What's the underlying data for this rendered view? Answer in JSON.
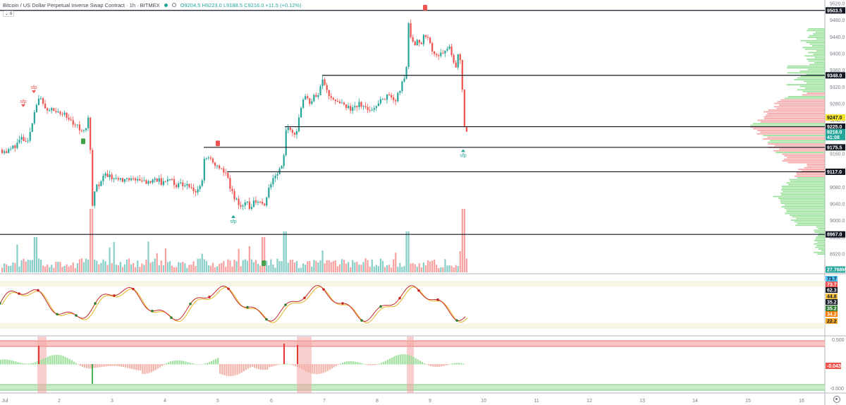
{
  "header": {
    "symbol": "Bitcoin / US Dollar Perpetual Inverse Swap Contract · 1h · BITMEX",
    "ohlc": "O9204.5  H9223.0  L9188.5  C9216.0  +11.5 (+0.12%)",
    "indicators_badge": "6"
  },
  "price_axis": {
    "ticks": [
      "9520.0",
      "9480.0",
      "9440.0",
      "9400.0",
      "9360.0",
      "9320.0",
      "9280.0",
      "9240.0",
      "9200.0",
      "9160.0",
      "9120.0",
      "9080.0",
      "9040.0",
      "9000.0",
      "8960.0",
      "8920.0"
    ],
    "badges": [
      {
        "text": "9503.5",
        "bg": "#131722",
        "fg": "#ffffff"
      },
      {
        "text": "9348.0",
        "bg": "#131722",
        "fg": "#ffffff"
      },
      {
        "text": "9247.0",
        "bg": "#f6e12b",
        "fg": "#131722"
      },
      {
        "text": "9225.0",
        "bg": "#131722",
        "fg": "#ffffff"
      },
      {
        "text": "9216.0",
        "bg": "#26a69a",
        "fg": "#ffffff"
      },
      {
        "text": "41:08",
        "bg": "#26a69a",
        "fg": "#ffffff"
      },
      {
        "text": "9175.5",
        "bg": "#131722",
        "fg": "#ffffff"
      },
      {
        "text": "9117.0",
        "bg": "#131722",
        "fg": "#ffffff"
      },
      {
        "text": "8967.0",
        "bg": "#131722",
        "fg": "#ffffff"
      },
      {
        "text": "27.768M",
        "bg": "#26a69a",
        "fg": "#ffffff"
      }
    ]
  },
  "levels": [
    9503.5,
    9348.0,
    9225.0,
    9175.5,
    9117.0,
    8967.0
  ],
  "oscillator_axis": {
    "badges": [
      {
        "text": "73.7",
        "bg": "#4fc3f7",
        "fg": "#131722"
      },
      {
        "text": "73.7",
        "bg": "#ef5350",
        "fg": "#ffffff"
      },
      {
        "text": "62.3",
        "bg": "#131722",
        "fg": "#ffffff"
      },
      {
        "text": "44.8",
        "bg": "#f6c343",
        "fg": "#131722"
      },
      {
        "text": "35.2",
        "bg": "#131722",
        "fg": "#ffffff"
      },
      {
        "text": "35.2",
        "bg": "#2e7d32",
        "fg": "#ffffff"
      },
      {
        "text": "34.2",
        "bg": "#f57c00",
        "fg": "#ffffff"
      },
      {
        "text": "22.2",
        "bg": "#f9a825",
        "fg": "#131722"
      }
    ]
  },
  "macd_axis": {
    "ticks": [
      "0.500",
      "-0.500"
    ],
    "badge": {
      "text": "-0.043",
      "bg": "#ef5350",
      "fg": "#ffffff"
    }
  },
  "time_axis": {
    "labels": [
      "Jul",
      "2",
      "3",
      "4",
      "5",
      "6",
      "7",
      "8",
      "9",
      "10",
      "11",
      "12",
      "13",
      "14",
      "15",
      "16"
    ]
  },
  "annotations": {
    "sfp": "sfp"
  },
  "colors": {
    "up": "#26a69a",
    "down": "#ef5350",
    "vp_up": "#7ed87e",
    "vp_down": "#f48c8c"
  },
  "chart_data": {
    "type": "candlestick",
    "symbol": "BTCUSD",
    "timeframe": "1h",
    "ylim": [
      8880,
      9540
    ],
    "close_path": [
      [
        0,
        9170
      ],
      [
        10,
        9165
      ],
      [
        20,
        9180
      ],
      [
        30,
        9195
      ],
      [
        40,
        9190
      ],
      [
        45,
        9240
      ],
      [
        50,
        9280
      ],
      [
        55,
        9295
      ],
      [
        60,
        9280
      ],
      [
        65,
        9260
      ],
      [
        70,
        9265
      ],
      [
        80,
        9262
      ],
      [
        90,
        9255
      ],
      [
        100,
        9235
      ],
      [
        110,
        9225
      ],
      [
        120,
        9215
      ],
      [
        125,
        9262
      ],
      [
        130,
        9040
      ],
      [
        135,
        9080
      ],
      [
        140,
        9090
      ],
      [
        150,
        9110
      ],
      [
        160,
        9105
      ],
      [
        170,
        9100
      ],
      [
        180,
        9095
      ],
      [
        190,
        9100
      ],
      [
        200,
        9095
      ],
      [
        210,
        9090
      ],
      [
        220,
        9100
      ],
      [
        230,
        9090
      ],
      [
        240,
        9095
      ],
      [
        250,
        9085
      ],
      [
        260,
        9090
      ],
      [
        270,
        9080
      ],
      [
        280,
        9070
      ],
      [
        285,
        9090
      ],
      [
        290,
        9160
      ],
      [
        295,
        9145
      ],
      [
        300,
        9140
      ],
      [
        305,
        9135
      ],
      [
        310,
        9125
      ],
      [
        320,
        9110
      ],
      [
        325,
        9080
      ],
      [
        330,
        9060
      ],
      [
        335,
        9050
      ],
      [
        340,
        9030
      ],
      [
        345,
        9045
      ],
      [
        350,
        9040
      ],
      [
        355,
        9030
      ],
      [
        360,
        9050
      ],
      [
        370,
        9040
      ],
      [
        375,
        9030
      ],
      [
        380,
        9080
      ],
      [
        385,
        9100
      ],
      [
        390,
        9110
      ],
      [
        395,
        9120
      ],
      [
        400,
        9130
      ],
      [
        405,
        9230
      ],
      [
        410,
        9220
      ],
      [
        415,
        9205
      ],
      [
        420,
        9220
      ],
      [
        425,
        9260
      ],
      [
        430,
        9300
      ],
      [
        440,
        9280
      ],
      [
        445,
        9305
      ],
      [
        450,
        9300
      ],
      [
        455,
        9340
      ],
      [
        460,
        9330
      ],
      [
        465,
        9300
      ],
      [
        470,
        9295
      ],
      [
        480,
        9280
      ],
      [
        490,
        9270
      ],
      [
        500,
        9265
      ],
      [
        510,
        9280
      ],
      [
        520,
        9265
      ],
      [
        530,
        9270
      ],
      [
        540,
        9290
      ],
      [
        550,
        9300
      ],
      [
        560,
        9290
      ],
      [
        570,
        9330
      ],
      [
        575,
        9350
      ],
      [
        578,
        9470
      ],
      [
        585,
        9420
      ],
      [
        590,
        9430
      ],
      [
        595,
        9420
      ],
      [
        600,
        9440
      ],
      [
        605,
        9450
      ],
      [
        610,
        9410
      ],
      [
        615,
        9395
      ],
      [
        620,
        9400
      ],
      [
        625,
        9405
      ],
      [
        630,
        9400
      ],
      [
        635,
        9420
      ],
      [
        640,
        9395
      ],
      [
        645,
        9360
      ],
      [
        650,
        9415
      ],
      [
        655,
        9310
      ],
      [
        658,
        9225
      ],
      [
        661,
        9216
      ]
    ]
  }
}
